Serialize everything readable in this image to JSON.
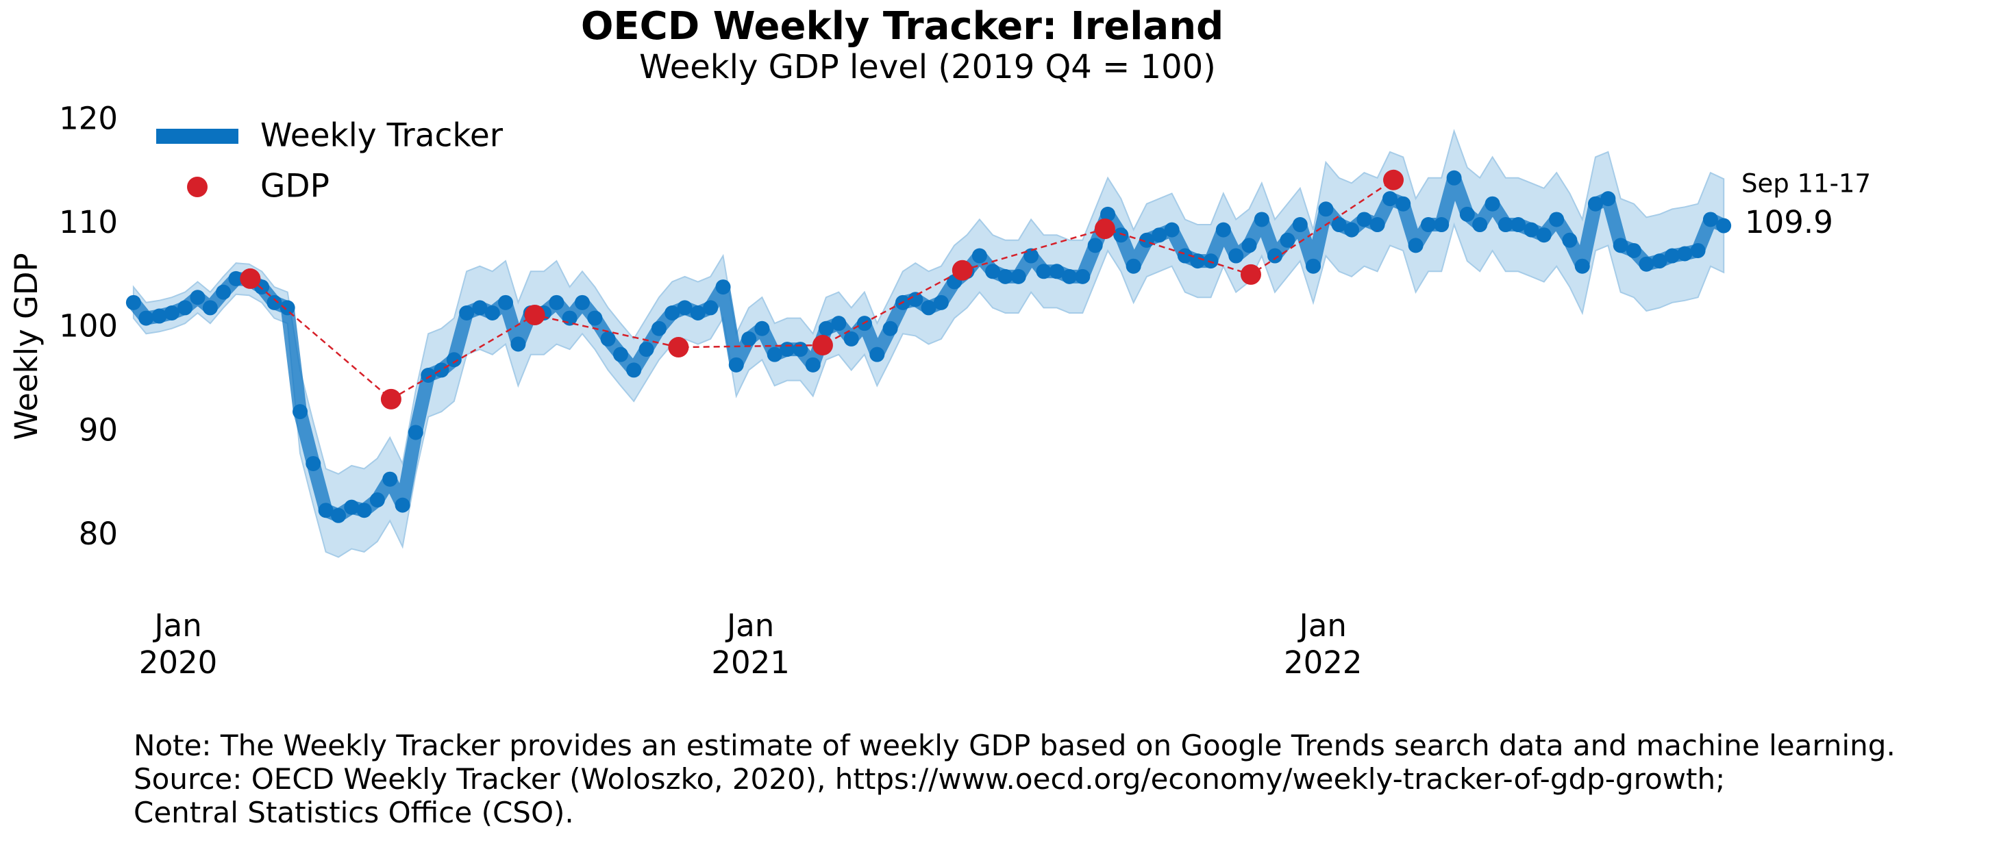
{
  "chart_data": {
    "type": "line",
    "title": "OECD Weekly Tracker: Ireland",
    "subtitle": "Weekly GDP level (2019 Q4 = 100)",
    "y_label": "Weekly GDP",
    "last_label": "Sep 11-17",
    "notes": [
      "Note: The Weekly Tracker provides an estimate of weekly GDP based on Google Trends search data and machine learning.",
      "Source: OECD Weekly Tracker (Woloszko, 2020), https://www.oecd.org/economy/weekly-tracker-of-gdp-growth;",
      "Central Statistics Office (CSO)."
    ],
    "legend": "upper left",
    "grid": false,
    "xlim": [
      2019.9,
      2022.78
    ],
    "ylim": [
      75,
      122
    ],
    "xticks": [
      {
        "value": 2020,
        "label": "Jan\n2020"
      },
      {
        "value": 2021,
        "label": "Jan\n2021"
      },
      {
        "value": 2022,
        "label": "Jan\n2022"
      }
    ],
    "yticks": [
      80,
      90,
      100,
      110,
      120
    ],
    "series": [
      {
        "name": "Weekly Tracker",
        "color": "#0a72c0",
        "band_color": "#c9e1f2",
        "x": [
          2019.922,
          2019.944,
          2019.967,
          2019.989,
          2020.012,
          2020.034,
          2020.056,
          2020.079,
          2020.101,
          2020.124,
          2020.146,
          2020.168,
          2020.191,
          2020.213,
          2020.236,
          2020.258,
          2020.28,
          2020.303,
          2020.325,
          2020.348,
          2020.37,
          2020.392,
          2020.415,
          2020.437,
          2020.46,
          2020.482,
          2020.504,
          2020.527,
          2020.549,
          2020.572,
          2020.594,
          2020.616,
          2020.639,
          2020.661,
          2020.684,
          2020.706,
          2020.728,
          2020.751,
          2020.773,
          2020.796,
          2020.818,
          2020.84,
          2020.863,
          2020.885,
          2020.908,
          2020.93,
          2020.952,
          2020.975,
          2020.997,
          2021.02,
          2021.042,
          2021.064,
          2021.087,
          2021.109,
          2021.132,
          2021.154,
          2021.176,
          2021.199,
          2021.221,
          2021.244,
          2021.266,
          2021.288,
          2021.311,
          2021.333,
          2021.356,
          2021.378,
          2021.4,
          2021.423,
          2021.445,
          2021.468,
          2021.49,
          2021.512,
          2021.535,
          2021.557,
          2021.58,
          2021.602,
          2021.624,
          2021.647,
          2021.669,
          2021.692,
          2021.714,
          2021.736,
          2021.759,
          2021.781,
          2021.804,
          2021.826,
          2021.848,
          2021.871,
          2021.893,
          2021.916,
          2021.938,
          2021.96,
          2021.983,
          2022.005,
          2022.028,
          2022.05,
          2022.072,
          2022.095,
          2022.117,
          2022.14,
          2022.162,
          2022.184,
          2022.207,
          2022.229,
          2022.252,
          2022.274,
          2022.296,
          2022.319,
          2022.341,
          2022.364,
          2022.386,
          2022.408,
          2022.431,
          2022.453,
          2022.476,
          2022.498,
          2022.52,
          2022.543,
          2022.565,
          2022.588,
          2022.61,
          2022.632,
          2022.655,
          2022.677,
          2022.7
        ],
        "values": [
          102.5,
          101,
          101.2,
          101.5,
          102,
          103,
          102,
          103.5,
          104.8,
          104.7,
          104,
          102.5,
          102,
          92,
          87,
          82.5,
          82,
          82.8,
          82.5,
          83.5,
          85.5,
          83,
          90,
          95.5,
          96,
          97,
          101.5,
          102,
          101.5,
          102.5,
          98.5,
          101.5,
          101.5,
          102.5,
          101,
          102.5,
          101,
          99,
          97.5,
          96,
          98,
          100,
          101.5,
          102,
          101.5,
          102,
          104,
          96.5,
          99,
          100,
          97.5,
          98,
          98,
          96.5,
          100,
          100.5,
          99,
          100.5,
          97.5,
          100,
          102.5,
          102.8,
          102,
          102.5,
          104.5,
          105.5,
          107,
          105.5,
          105,
          105,
          107,
          105.5,
          105.5,
          105,
          105,
          108,
          111,
          109,
          106,
          108.5,
          109,
          109.5,
          107,
          106.5,
          106.5,
          109.5,
          107,
          108,
          110.5,
          107,
          108.5,
          110,
          106,
          111.5,
          110,
          109.5,
          110.5,
          110,
          112.5,
          112,
          108,
          110,
          110,
          114.5,
          111,
          110,
          112,
          110,
          110,
          109.5,
          109,
          110.5,
          108.5,
          106,
          112,
          112.5,
          108,
          107.5,
          106.2,
          106.5,
          107,
          107.2,
          107.5,
          110.5,
          109.9
        ],
        "lower": [
          101,
          99.5,
          99.7,
          100,
          100.5,
          101.5,
          100.5,
          102,
          103.3,
          103.2,
          102.5,
          101,
          100.5,
          88,
          83,
          78.5,
          78,
          78.8,
          78.5,
          79.5,
          81.5,
          79,
          86,
          91.5,
          92,
          93,
          97.5,
          98,
          97.5,
          98.5,
          94.5,
          97.5,
          97.5,
          98.5,
          98,
          99.5,
          98,
          96,
          94.5,
          93,
          95,
          97,
          98.5,
          99,
          98.5,
          99,
          101,
          93.5,
          96,
          97,
          94.5,
          95,
          95,
          93.5,
          97,
          97.5,
          96,
          97.5,
          94.5,
          97,
          99.5,
          99.3,
          98.5,
          99,
          101,
          102,
          103.5,
          102,
          101.5,
          101.5,
          103.5,
          102,
          102,
          101.5,
          101.5,
          104.5,
          107.5,
          105.5,
          102.5,
          105,
          105.5,
          106,
          103.5,
          103,
          103,
          106,
          103.5,
          104.5,
          107,
          103.5,
          105,
          106.5,
          102.5,
          107,
          105.5,
          105,
          106,
          105.5,
          108,
          107.5,
          103.5,
          105.5,
          105.5,
          110,
          106.5,
          105.5,
          107.5,
          105.5,
          105.5,
          105,
          104.5,
          106,
          104,
          101.5,
          107.5,
          108,
          103.5,
          103,
          101.7,
          102,
          102.5,
          102.7,
          103,
          106,
          105.4
        ],
        "upper": [
          104,
          102.5,
          102.7,
          103,
          103.5,
          104.5,
          103.5,
          105,
          106.3,
          106.2,
          105.5,
          104,
          103.5,
          96,
          91,
          86.5,
          86,
          86.8,
          86.5,
          87.5,
          89.5,
          87,
          94,
          99.5,
          100,
          101,
          105.5,
          106,
          105.5,
          106.5,
          102.5,
          105.5,
          105.5,
          106.5,
          104,
          105.5,
          104,
          102,
          100.5,
          99,
          101,
          103,
          104.5,
          105,
          104.5,
          105,
          107,
          99.5,
          102,
          103,
          100.5,
          101,
          101,
          99.5,
          103,
          103.5,
          102,
          103.5,
          100.5,
          103,
          105.5,
          106.3,
          105.5,
          106,
          108,
          109,
          110.5,
          109,
          108.5,
          108.5,
          110.5,
          109,
          109,
          108.5,
          108.5,
          111.5,
          114.5,
          112.5,
          109.5,
          112,
          112.5,
          113,
          110.5,
          110,
          110,
          113,
          110.5,
          111.5,
          114,
          110.5,
          112,
          113.5,
          109.5,
          116,
          114.5,
          114,
          115,
          114.5,
          117,
          116.5,
          112.5,
          114.5,
          114.5,
          119,
          115.5,
          114.5,
          116.5,
          114.5,
          114.5,
          114,
          113.5,
          115,
          113,
          110.5,
          116.5,
          117,
          112.5,
          112,
          110.7,
          111,
          111.5,
          111.7,
          112,
          115,
          114.4
        ]
      },
      {
        "name": "GDP",
        "color": "#d62029",
        "x": [
          2020.126,
          2020.372,
          2020.623,
          2020.874,
          2021.126,
          2021.37,
          2021.619,
          2021.874,
          2022.123
        ],
        "values": [
          104.8,
          93.2,
          101.3,
          98.2,
          98.4,
          105.6,
          109.6,
          105.2,
          114.3
        ]
      }
    ]
  }
}
